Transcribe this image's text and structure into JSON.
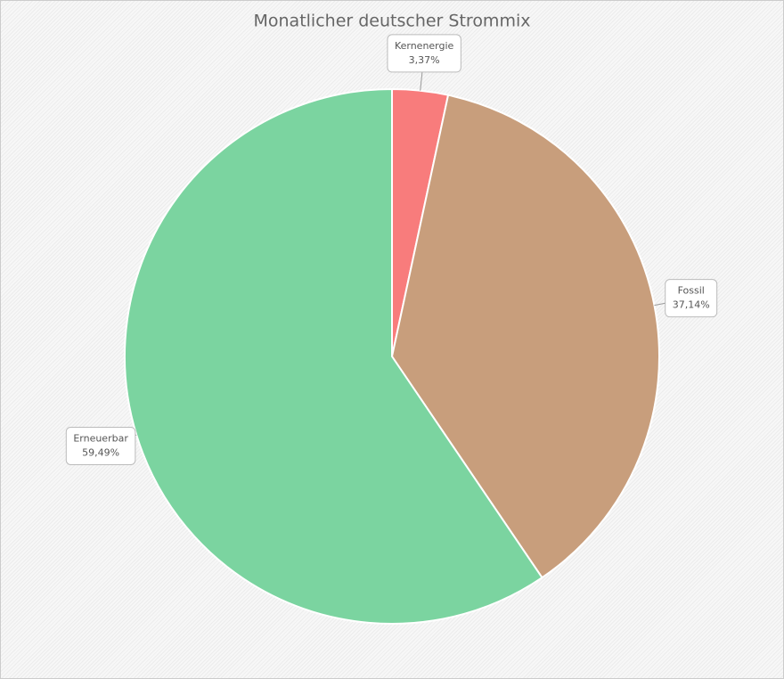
{
  "chart_data": {
    "type": "pie",
    "title": "Monatlicher deutscher Strommix",
    "categories": [
      "Kernenergie",
      "Fossil",
      "Erneuerbar"
    ],
    "values": [
      3.37,
      37.14,
      59.49
    ],
    "value_labels": [
      "3,37%",
      "37,14%",
      "59,49%"
    ],
    "colors": [
      "#f87c7c",
      "#c89e7c",
      "#7bd4a0"
    ]
  }
}
